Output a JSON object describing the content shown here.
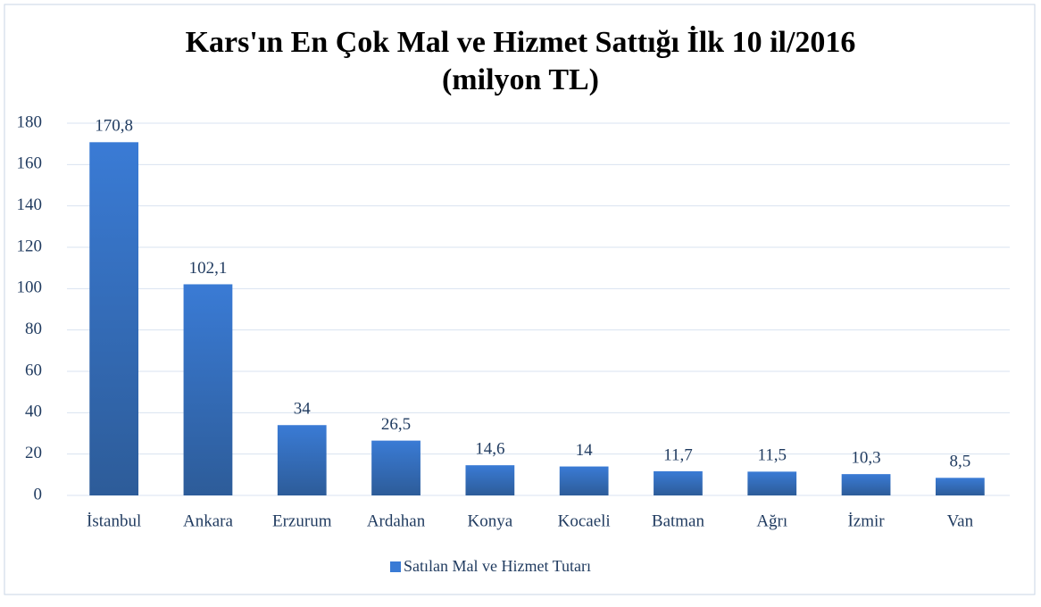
{
  "chart_data": {
    "type": "bar",
    "title": "Kars'ın En Çok Mal ve Hizmet Sattığı İlk 10 il/2016",
    "subtitle": "(milyon TL)",
    "categories": [
      "İstanbul",
      "Ankara",
      "Erzurum",
      "Ardahan",
      "Konya",
      "Kocaeli",
      "Batman",
      "Ağrı",
      "İzmir",
      "Van"
    ],
    "series": [
      {
        "name": "Satılan Mal ve Hizmet Tutarı",
        "color": "#3a7bd5",
        "values": [
          170.8,
          102.1,
          34,
          26.5,
          14.6,
          14,
          11.7,
          11.5,
          10.3,
          8.5
        ],
        "value_labels": [
          "170,8",
          "102,1",
          "34",
          "26,5",
          "14,6",
          "14",
          "11,7",
          "11,5",
          "10,3",
          "8,5"
        ]
      }
    ],
    "ylim": [
      0,
      180
    ],
    "yticks": [
      0,
      20,
      40,
      60,
      80,
      100,
      120,
      140,
      160,
      180
    ],
    "grid": true,
    "legend": "bottom"
  }
}
